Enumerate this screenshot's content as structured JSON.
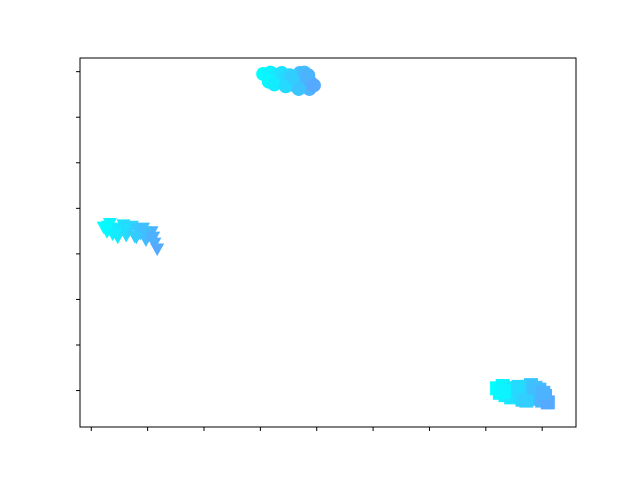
{
  "chart_data": {
    "type": "scatter",
    "title": "",
    "xlabel": "",
    "ylabel": "",
    "xlim": [
      -0.2,
      8.6
    ],
    "ylim": [
      -0.8,
      7.3
    ],
    "x_ticks": [
      0,
      1,
      2,
      3,
      4,
      5,
      6,
      7,
      8
    ],
    "y_ticks": [
      0,
      1,
      2,
      3,
      4,
      5,
      6,
      7
    ],
    "tick_labels_visible": false,
    "grid": false,
    "legend": "none",
    "colormap": [
      "#00ffff",
      "#55aaff"
    ],
    "series": [
      {
        "marker": "circle",
        "points": [
          [
            3.05,
            6.95
          ],
          [
            3.12,
            6.9
          ],
          [
            3.18,
            6.98
          ],
          [
            3.22,
            6.85
          ],
          [
            3.28,
            6.93
          ],
          [
            3.33,
            6.8
          ],
          [
            3.38,
            6.97
          ],
          [
            3.42,
            6.86
          ],
          [
            3.47,
            6.75
          ],
          [
            3.52,
            6.92
          ],
          [
            3.56,
            6.8
          ],
          [
            3.6,
            6.7
          ],
          [
            3.65,
            6.88
          ],
          [
            3.7,
            6.97
          ],
          [
            3.72,
            6.78
          ],
          [
            3.76,
            6.9
          ],
          [
            3.8,
            6.7
          ],
          [
            3.83,
            6.82
          ],
          [
            3.87,
            6.62
          ],
          [
            3.9,
            6.75
          ],
          [
            3.15,
            6.78
          ],
          [
            3.25,
            6.72
          ],
          [
            3.45,
            6.68
          ],
          [
            3.58,
            6.88
          ],
          [
            3.68,
            6.62
          ],
          [
            3.78,
            6.98
          ],
          [
            3.85,
            6.92
          ],
          [
            3.95,
            6.7
          ]
        ]
      },
      {
        "marker": "triangle-down",
        "points": [
          [
            0.22,
            3.6
          ],
          [
            0.28,
            3.5
          ],
          [
            0.33,
            3.68
          ],
          [
            0.38,
            3.45
          ],
          [
            0.42,
            3.58
          ],
          [
            0.47,
            3.38
          ],
          [
            0.52,
            3.55
          ],
          [
            0.57,
            3.65
          ],
          [
            0.62,
            3.42
          ],
          [
            0.67,
            3.52
          ],
          [
            0.72,
            3.62
          ],
          [
            0.77,
            3.4
          ],
          [
            0.82,
            3.55
          ],
          [
            0.87,
            3.46
          ],
          [
            0.92,
            3.58
          ],
          [
            0.97,
            3.32
          ],
          [
            1.02,
            3.42
          ],
          [
            1.07,
            3.5
          ],
          [
            1.12,
            3.25
          ],
          [
            1.17,
            3.12
          ],
          [
            0.3,
            3.62
          ],
          [
            0.45,
            3.48
          ],
          [
            0.6,
            3.58
          ],
          [
            0.8,
            3.38
          ],
          [
            0.95,
            3.5
          ],
          [
            1.1,
            3.38
          ]
        ]
      },
      {
        "marker": "square",
        "points": [
          [
            7.2,
            0.05
          ],
          [
            7.25,
            -0.05
          ],
          [
            7.3,
            0.1
          ],
          [
            7.35,
            -0.1
          ],
          [
            7.4,
            0.0
          ],
          [
            7.45,
            -0.15
          ],
          [
            7.5,
            0.05
          ],
          [
            7.55,
            -0.1
          ],
          [
            7.6,
            0.0
          ],
          [
            7.65,
            -0.2
          ],
          [
            7.7,
            0.08
          ],
          [
            7.75,
            -0.12
          ],
          [
            7.8,
            0.12
          ],
          [
            7.85,
            -0.02
          ],
          [
            7.9,
            -0.18
          ],
          [
            7.95,
            0.02
          ],
          [
            8.0,
            -0.22
          ],
          [
            8.05,
            -0.12
          ],
          [
            8.1,
            -0.26
          ],
          [
            7.32,
            -0.02
          ],
          [
            7.58,
            0.08
          ],
          [
            7.72,
            -0.22
          ],
          [
            7.88,
            0.06
          ],
          [
            8.02,
            -0.05
          ]
        ]
      }
    ]
  }
}
